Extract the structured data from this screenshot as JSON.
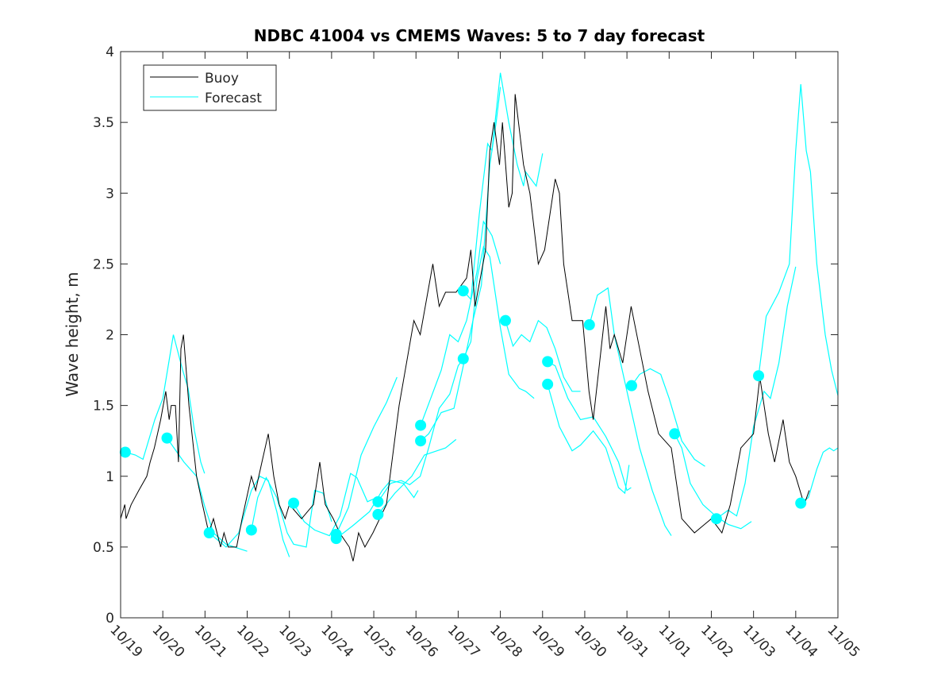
{
  "chart_data": {
    "type": "line",
    "title": "NDBC 41004 vs CMEMS Waves: 5 to 7 day forecast",
    "xlabel": "",
    "ylabel": "Wave height, m",
    "xlim": [
      0,
      17
    ],
    "ylim": [
      0,
      4
    ],
    "x_units": "days since 10/19",
    "x_tick_labels": [
      "10/19",
      "10/20",
      "10/21",
      "10/22",
      "10/23",
      "10/24",
      "10/25",
      "10/26",
      "10/27",
      "10/28",
      "10/29",
      "10/30",
      "10/31",
      "11/01",
      "11/02",
      "11/03",
      "11/04",
      "11/05"
    ],
    "y_ticks": [
      0,
      0.5,
      1,
      1.5,
      2,
      2.5,
      3,
      3.5,
      4
    ],
    "y_tick_labels": [
      "0",
      "0.5",
      "1",
      "1.5",
      "2",
      "2.5",
      "3",
      "3.5",
      "4"
    ],
    "grid": false,
    "legend": {
      "placement": "top-left",
      "entries": [
        "Buoy",
        "Forecast"
      ]
    },
    "colors": {
      "buoy": "#000000",
      "forecast": "#00ffff"
    },
    "buoy": [
      [
        0,
        0.7
      ],
      [
        0.1,
        0.8
      ],
      [
        0.13,
        0.7
      ],
      [
        0.25,
        0.8
      ],
      [
        0.43,
        0.9
      ],
      [
        0.62,
        1.0
      ],
      [
        0.7,
        1.1
      ],
      [
        0.8,
        1.2
      ],
      [
        0.95,
        1.4
      ],
      [
        1.07,
        1.6
      ],
      [
        1.15,
        1.4
      ],
      [
        1.2,
        1.5
      ],
      [
        1.3,
        1.5
      ],
      [
        1.37,
        1.1
      ],
      [
        1.43,
        1.9
      ],
      [
        1.49,
        2.0
      ],
      [
        1.62,
        1.5
      ],
      [
        1.8,
        1.0
      ],
      [
        1.94,
        0.8
      ],
      [
        2.09,
        0.6
      ],
      [
        2.2,
        0.7
      ],
      [
        2.37,
        0.5
      ],
      [
        2.45,
        0.6
      ],
      [
        2.55,
        0.5
      ],
      [
        2.75,
        0.5
      ],
      [
        2.88,
        0.7
      ],
      [
        3.1,
        1.0
      ],
      [
        3.2,
        0.9
      ],
      [
        3.35,
        1.1
      ],
      [
        3.5,
        1.3
      ],
      [
        3.63,
        1.0
      ],
      [
        3.76,
        0.8
      ],
      [
        3.9,
        0.7
      ],
      [
        4.0,
        0.8
      ],
      [
        4.29,
        0.7
      ],
      [
        4.57,
        0.8
      ],
      [
        4.72,
        1.1
      ],
      [
        4.85,
        0.8
      ],
      [
        5.04,
        0.7
      ],
      [
        5.19,
        0.6
      ],
      [
        5.42,
        0.5
      ],
      [
        5.51,
        0.4
      ],
      [
        5.64,
        0.6
      ],
      [
        5.79,
        0.5
      ],
      [
        5.98,
        0.6
      ],
      [
        6.3,
        0.8
      ],
      [
        6.6,
        1.5
      ],
      [
        6.95,
        2.1
      ],
      [
        7.1,
        2.0
      ],
      [
        7.4,
        2.5
      ],
      [
        7.55,
        2.2
      ],
      [
        7.7,
        2.3
      ],
      [
        7.95,
        2.3
      ],
      [
        8.2,
        2.4
      ],
      [
        8.3,
        2.6
      ],
      [
        8.4,
        2.2
      ],
      [
        8.65,
        2.6
      ],
      [
        8.75,
        3.3
      ],
      [
        8.85,
        3.5
      ],
      [
        8.98,
        3.2
      ],
      [
        9.05,
        3.5
      ],
      [
        9.2,
        2.9
      ],
      [
        9.28,
        3.0
      ],
      [
        9.35,
        3.7
      ],
      [
        9.55,
        3.2
      ],
      [
        9.7,
        3.0
      ],
      [
        9.9,
        2.5
      ],
      [
        10.05,
        2.6
      ],
      [
        10.3,
        3.1
      ],
      [
        10.4,
        3.0
      ],
      [
        10.5,
        2.5
      ],
      [
        10.7,
        2.1
      ],
      [
        10.95,
        2.1
      ],
      [
        11.1,
        1.6
      ],
      [
        11.2,
        1.4
      ],
      [
        11.35,
        1.8
      ],
      [
        11.5,
        2.2
      ],
      [
        11.6,
        1.9
      ],
      [
        11.7,
        2.0
      ],
      [
        11.9,
        1.8
      ],
      [
        12.1,
        2.2
      ],
      [
        12.3,
        1.9
      ],
      [
        12.5,
        1.6
      ],
      [
        12.75,
        1.3
      ],
      [
        13.05,
        1.2
      ],
      [
        13.2,
        0.9
      ],
      [
        13.3,
        0.7
      ],
      [
        13.6,
        0.6
      ],
      [
        14.0,
        0.7
      ],
      [
        14.25,
        0.6
      ],
      [
        14.45,
        0.8
      ],
      [
        14.7,
        1.2
      ],
      [
        15.0,
        1.3
      ],
      [
        15.15,
        1.7
      ],
      [
        15.35,
        1.3
      ],
      [
        15.5,
        1.1
      ],
      [
        15.7,
        1.4
      ],
      [
        15.85,
        1.1
      ],
      [
        16.0,
        1.0
      ],
      [
        16.2,
        0.8
      ],
      [
        16.32,
        0.9
      ]
    ],
    "forecast_start_points": [
      [
        0.11,
        1.17
      ],
      [
        1.1,
        1.27
      ],
      [
        2.1,
        0.6
      ],
      [
        3.1,
        0.62
      ],
      [
        4.1,
        0.81
      ],
      [
        5.11,
        0.59
      ],
      [
        5.11,
        0.56
      ],
      [
        6.1,
        0.82
      ],
      [
        6.1,
        0.73
      ],
      [
        7.11,
        1.36
      ],
      [
        7.11,
        1.25
      ],
      [
        8.12,
        2.31
      ],
      [
        8.12,
        1.83
      ],
      [
        9.12,
        2.1
      ],
      [
        10.12,
        1.81
      ],
      [
        10.12,
        1.65
      ],
      [
        11.11,
        2.07
      ],
      [
        12.11,
        1.64
      ],
      [
        13.13,
        1.3
      ],
      [
        14.12,
        0.7
      ],
      [
        15.12,
        1.71
      ],
      [
        16.12,
        0.81
      ]
    ],
    "forecast_segments": [
      [
        [
          0.11,
          1.17
        ],
        [
          0.35,
          1.15
        ],
        [
          0.53,
          1.12
        ],
        [
          0.81,
          1.4
        ],
        [
          1.0,
          1.55
        ],
        [
          1.25,
          2.0
        ],
        [
          1.47,
          1.75
        ],
        [
          1.6,
          1.62
        ],
        [
          1.75,
          1.32
        ],
        [
          1.9,
          1.1
        ],
        [
          1.99,
          1.02
        ]
      ],
      [
        [
          1.1,
          1.27
        ],
        [
          1.5,
          1.1
        ],
        [
          1.8,
          1.0
        ],
        [
          2.0,
          0.78
        ],
        [
          2.2,
          0.6
        ],
        [
          2.5,
          0.52
        ],
        [
          2.7,
          0.5
        ],
        [
          3.0,
          0.47
        ]
      ],
      [
        [
          2.1,
          0.6
        ],
        [
          2.3,
          0.55
        ],
        [
          2.5,
          0.5
        ],
        [
          2.8,
          0.6
        ],
        [
          3.1,
          0.9
        ],
        [
          3.3,
          1.0
        ],
        [
          3.5,
          0.97
        ],
        [
          3.7,
          0.75
        ],
        [
          3.85,
          0.55
        ],
        [
          4.0,
          0.43
        ]
      ],
      [
        [
          3.1,
          0.62
        ],
        [
          3.25,
          0.85
        ],
        [
          3.45,
          0.99
        ],
        [
          3.7,
          0.85
        ],
        [
          3.95,
          0.6
        ],
        [
          4.1,
          0.52
        ],
        [
          4.4,
          0.5
        ],
        [
          4.6,
          0.9
        ],
        [
          4.8,
          0.88
        ],
        [
          5.0,
          0.68
        ]
      ],
      [
        [
          4.1,
          0.81
        ],
        [
          4.35,
          0.68
        ],
        [
          4.6,
          0.62
        ],
        [
          4.95,
          0.58
        ],
        [
          5.2,
          0.72
        ],
        [
          5.45,
          1.02
        ],
        [
          5.6,
          0.99
        ],
        [
          5.85,
          0.82
        ],
        [
          6.07,
          0.85
        ]
      ],
      [
        [
          5.11,
          0.59
        ],
        [
          5.4,
          0.78
        ],
        [
          5.7,
          1.15
        ],
        [
          6.0,
          1.35
        ],
        [
          6.3,
          1.52
        ],
        [
          6.55,
          1.7
        ]
      ],
      [
        [
          5.11,
          0.56
        ],
        [
          5.5,
          0.65
        ],
        [
          5.9,
          0.75
        ],
        [
          6.2,
          0.9
        ],
        [
          6.4,
          0.97
        ],
        [
          6.7,
          0.95
        ],
        [
          6.95,
          0.85
        ],
        [
          7.05,
          0.9
        ]
      ],
      [
        [
          6.1,
          0.82
        ],
        [
          6.4,
          0.95
        ],
        [
          6.65,
          0.97
        ],
        [
          6.85,
          0.94
        ],
        [
          7.1,
          1.0
        ],
        [
          7.3,
          1.2
        ],
        [
          7.55,
          1.48
        ],
        [
          7.8,
          1.58
        ],
        [
          8.0,
          1.78
        ],
        [
          8.12,
          1.83
        ]
      ],
      [
        [
          6.1,
          0.73
        ],
        [
          6.5,
          0.88
        ],
        [
          6.9,
          1.0
        ],
        [
          7.2,
          1.15
        ],
        [
          7.4,
          1.17
        ],
        [
          7.7,
          1.2
        ],
        [
          7.95,
          1.26
        ]
      ],
      [
        [
          7.11,
          1.36
        ],
        [
          7.35,
          1.55
        ],
        [
          7.6,
          1.75
        ],
        [
          7.8,
          2.0
        ],
        [
          8.0,
          1.95
        ],
        [
          8.2,
          2.1
        ],
        [
          8.45,
          2.45
        ],
        [
          8.6,
          2.8
        ],
        [
          8.8,
          2.7
        ],
        [
          9.0,
          2.5
        ]
      ],
      [
        [
          7.11,
          1.25
        ],
        [
          7.3,
          1.3
        ],
        [
          7.6,
          1.45
        ],
        [
          7.9,
          1.48
        ],
        [
          8.1,
          1.75
        ],
        [
          8.35,
          2.1
        ],
        [
          8.55,
          2.35
        ],
        [
          8.75,
          3.2
        ],
        [
          8.9,
          3.5
        ],
        [
          9.0,
          3.75
        ]
      ],
      [
        [
          8.12,
          2.31
        ],
        [
          8.3,
          2.25
        ],
        [
          8.5,
          2.85
        ],
        [
          8.7,
          3.35
        ],
        [
          8.8,
          3.3
        ],
        [
          9.0,
          3.85
        ],
        [
          9.2,
          3.5
        ],
        [
          9.4,
          3.2
        ],
        [
          9.55,
          3.05
        ],
        [
          9.6,
          3.15
        ],
        [
          9.85,
          3.05
        ],
        [
          10.0,
          3.28
        ]
      ],
      [
        [
          8.12,
          1.83
        ],
        [
          8.3,
          1.95
        ],
        [
          8.45,
          2.4
        ],
        [
          8.6,
          2.62
        ],
        [
          8.75,
          2.55
        ],
        [
          9.0,
          2.05
        ],
        [
          9.2,
          1.72
        ],
        [
          9.45,
          1.62
        ],
        [
          9.6,
          1.6
        ],
        [
          9.8,
          1.55
        ]
      ],
      [
        [
          9.12,
          2.1
        ],
        [
          9.3,
          1.92
        ],
        [
          9.5,
          2.0
        ],
        [
          9.7,
          1.95
        ],
        [
          9.9,
          2.1
        ],
        [
          10.1,
          2.05
        ],
        [
          10.3,
          1.9
        ],
        [
          10.5,
          1.7
        ],
        [
          10.7,
          1.6
        ],
        [
          10.9,
          1.6
        ]
      ],
      [
        [
          10.12,
          1.81
        ],
        [
          10.3,
          1.78
        ],
        [
          10.6,
          1.55
        ],
        [
          10.9,
          1.4
        ],
        [
          11.2,
          1.42
        ],
        [
          11.5,
          1.28
        ],
        [
          11.8,
          1.1
        ],
        [
          12.0,
          0.9
        ],
        [
          12.1,
          0.92
        ]
      ],
      [
        [
          10.12,
          1.65
        ],
        [
          10.4,
          1.35
        ],
        [
          10.7,
          1.18
        ],
        [
          10.9,
          1.22
        ],
        [
          11.2,
          1.32
        ],
        [
          11.5,
          1.2
        ],
        [
          11.8,
          0.92
        ],
        [
          11.95,
          0.88
        ],
        [
          12.05,
          1.08
        ]
      ],
      [
        [
          11.11,
          2.07
        ],
        [
          11.3,
          2.28
        ],
        [
          11.55,
          2.33
        ],
        [
          11.7,
          2.0
        ],
        [
          12.0,
          1.6
        ],
        [
          12.3,
          1.2
        ],
        [
          12.6,
          0.9
        ],
        [
          12.9,
          0.65
        ],
        [
          13.05,
          0.58
        ]
      ],
      [
        [
          12.11,
          1.64
        ],
        [
          12.3,
          1.72
        ],
        [
          12.55,
          1.76
        ],
        [
          12.8,
          1.72
        ],
        [
          13.0,
          1.55
        ],
        [
          13.3,
          1.25
        ],
        [
          13.6,
          1.12
        ],
        [
          13.85,
          1.07
        ]
      ],
      [
        [
          13.13,
          1.3
        ],
        [
          13.3,
          1.2
        ],
        [
          13.5,
          0.95
        ],
        [
          13.8,
          0.8
        ],
        [
          14.1,
          0.72
        ],
        [
          14.4,
          0.66
        ],
        [
          14.7,
          0.63
        ],
        [
          14.95,
          0.68
        ]
      ],
      [
        [
          14.12,
          0.7
        ],
        [
          14.4,
          0.76
        ],
        [
          14.6,
          0.72
        ],
        [
          14.8,
          0.95
        ],
        [
          15.0,
          1.35
        ],
        [
          15.25,
          1.6
        ],
        [
          15.4,
          1.55
        ],
        [
          15.6,
          1.8
        ],
        [
          15.8,
          2.2
        ],
        [
          16.0,
          2.48
        ]
      ],
      [
        [
          15.12,
          1.71
        ],
        [
          15.3,
          2.13
        ],
        [
          15.6,
          2.3
        ],
        [
          15.85,
          2.5
        ],
        [
          16.0,
          3.3
        ],
        [
          16.12,
          3.77
        ],
        [
          16.25,
          3.3
        ],
        [
          16.35,
          3.15
        ],
        [
          16.5,
          2.5
        ],
        [
          16.7,
          2.0
        ],
        [
          16.85,
          1.75
        ],
        [
          17.0,
          1.57
        ]
      ],
      [
        [
          16.12,
          0.81
        ],
        [
          16.3,
          0.85
        ],
        [
          16.5,
          1.05
        ],
        [
          16.65,
          1.17
        ],
        [
          16.8,
          1.2
        ],
        [
          16.9,
          1.18
        ],
        [
          17.0,
          1.2
        ]
      ]
    ]
  }
}
